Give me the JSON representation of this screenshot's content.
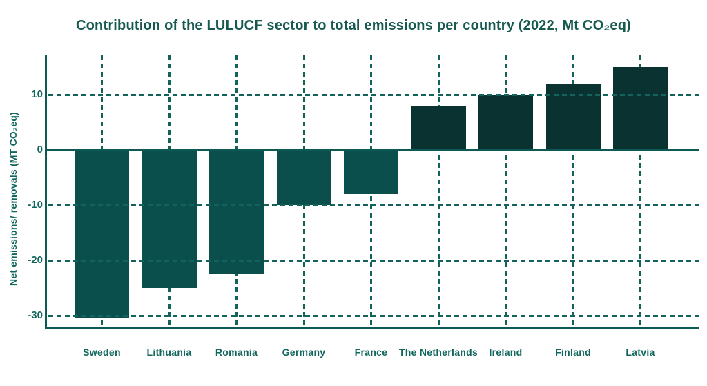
{
  "chart_data": {
    "type": "bar",
    "title": "Contribution of the LULUCF sector to total emissions per country (2022, Mt CO₂eq)",
    "ylabel": "Net emissions/ removals (MT CO₂eq)",
    "categories": [
      "Sweden",
      "Lithuania",
      "Romania",
      "Germany",
      "France",
      "The Netherlands",
      "Ireland",
      "Finland",
      "Latvia"
    ],
    "values": [
      -30.5,
      -25,
      -22.5,
      -10,
      -8,
      8,
      10,
      12,
      15
    ],
    "yticks": [
      10,
      0,
      -10,
      -20,
      -30
    ],
    "ylim": [
      -32,
      17
    ],
    "grid": "dashed-horizontal-and-vertical",
    "legend": "none",
    "colors": {
      "bar_negative": "#0a4f4b",
      "bar_positive": "#0a3231",
      "axis": "#0d5a54",
      "gridline": "#13625b",
      "tick_text": "#11665d",
      "title_text": "#16594f",
      "background": "#ffffff"
    }
  }
}
